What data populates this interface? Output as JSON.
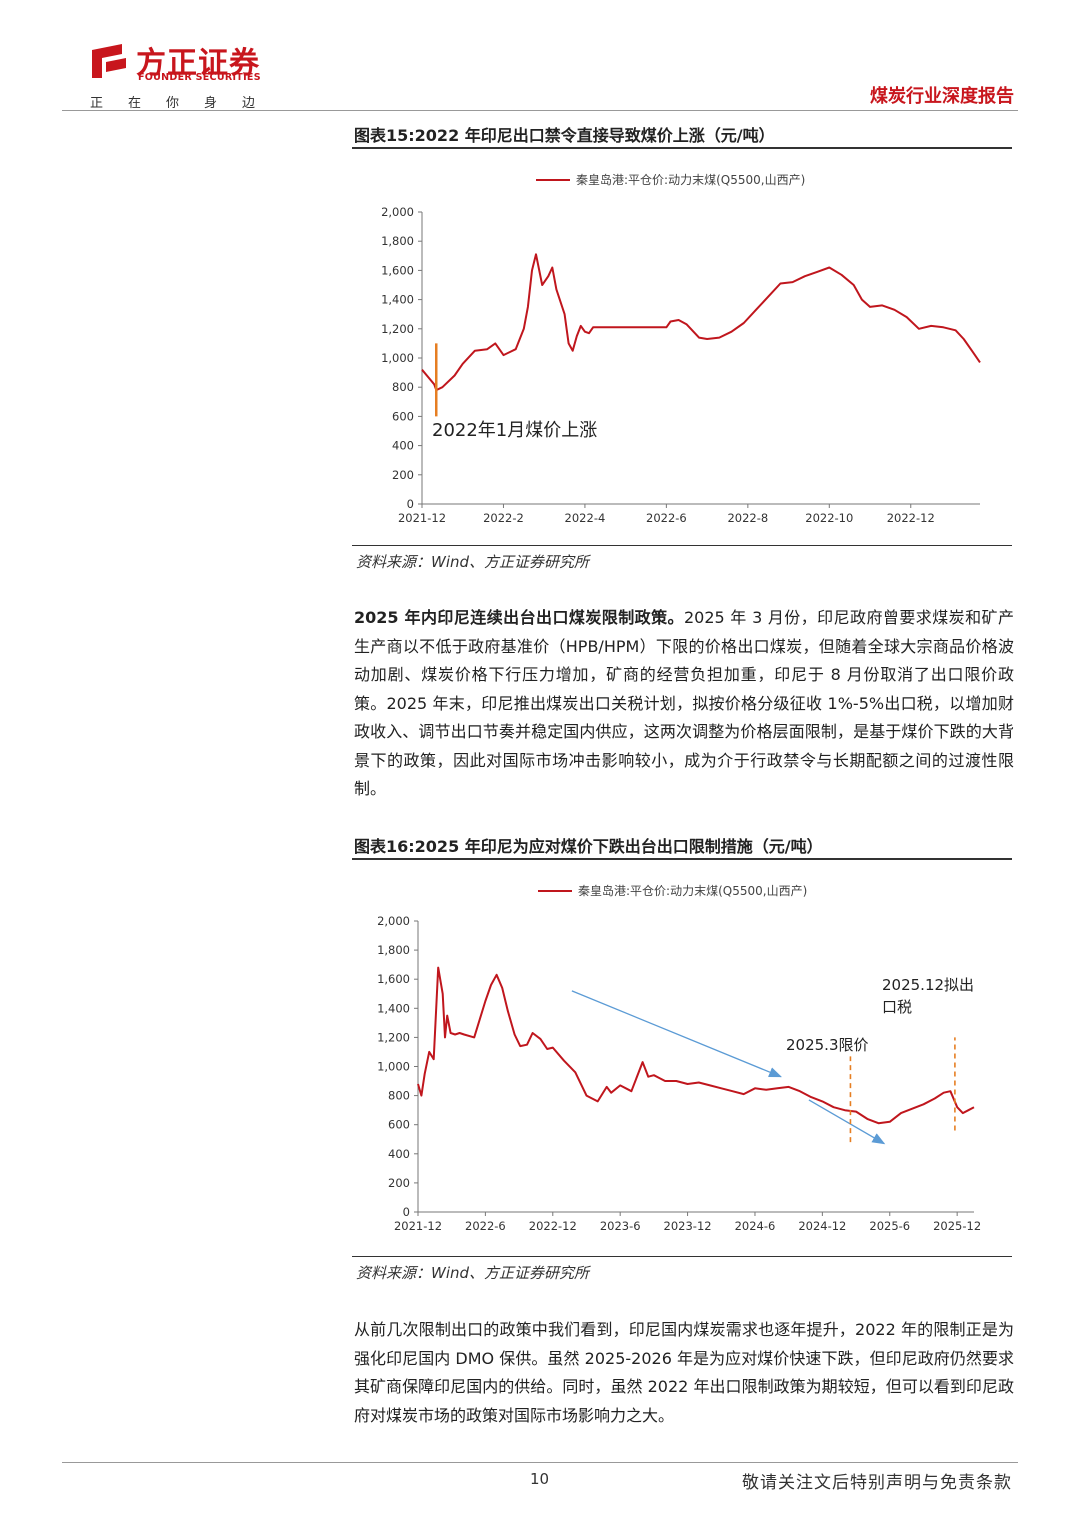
{
  "header": {
    "logo_cn": "方正证券",
    "logo_en": "FOUNDER SECURITIES",
    "slogan": [
      "正",
      "在",
      "你",
      "身",
      "边"
    ],
    "report_type": "煤炭行业深度报告",
    "brand_color": "#c8161d"
  },
  "figure15": {
    "title": "图表15:2022 年印尼出口禁令直接导致煤价上涨（元/吨）",
    "source": "资料来源：Wind、方正证券研究所"
  },
  "figure16": {
    "title": "图表16:2025 年印尼为应对煤价下跌出台出口限制措施（元/吨）",
    "source": "资料来源：Wind、方正证券研究所"
  },
  "paragraph1": {
    "bold_lead": "2025 年内印尼连续出台出口煤炭限制政策。",
    "text": "2025 年 3 月份，印尼政府曾要求煤炭和矿产生产商以不低于政府基准价（HPB/HPM）下限的价格出口煤炭，但随着全球大宗商品价格波动加剧、煤炭价格下行压力增加，矿商的经营负担加重，印尼于 8 月份取消了出口限价政策。2025 年末，印尼推出煤炭出口关税计划，拟按价格分级征收 1%-5%出口税，以增加财政收入、调节出口节奏并稳定国内供应，这两次调整为价格层面限制，是基于煤价下跌的大背景下的政策，因此对国际市场冲击影响较小，成为介于行政禁令与长期配额之间的过渡性限制。"
  },
  "paragraph2": {
    "text": "从前几次限制出口的政策中我们看到，印尼国内煤炭需求也逐年提升，2022 年的限制正是为强化印尼国内 DMO 保供。虽然 2025-2026 年是为应对煤价快速下跌，但印尼政府仍然要求其矿商保障印尼国内的供给。同时，虽然 2022 年出口限制政策为期较短，但可以看到印尼政府对煤炭市场的政策对国际市场影响力之大。"
  },
  "footer": {
    "page_number": "10",
    "disclaimer": "敬请关注文后特别声明与免责条款"
  },
  "chart_data": [
    {
      "type": "line",
      "legend": "秦皇岛港:平仓价:动力末煤(Q5500,山西产)",
      "ylim": [
        0,
        2000
      ],
      "yticks": [
        "0",
        "200",
        "400",
        "600",
        "800",
        "1,000",
        "1,200",
        "1,400",
        "1,600",
        "1,800",
        "2,000"
      ],
      "xticks": [
        "2021-12",
        "2022-2",
        "2022-4",
        "2022-6",
        "2022-8",
        "2022-10",
        "2022-12"
      ],
      "xlim_months": [
        0,
        13.7
      ],
      "line_color": "#c0161d",
      "annotation": {
        "text": "2022年1月煤价上涨",
        "x_month": 0.35,
        "y_from": 600,
        "y_to": 1100,
        "color": "#e67e22"
      },
      "x_months": [
        0,
        0.3,
        0.35,
        0.5,
        0.8,
        1.0,
        1.3,
        1.6,
        1.8,
        2.0,
        2.3,
        2.5,
        2.6,
        2.7,
        2.8,
        2.95,
        3.1,
        3.2,
        3.3,
        3.5,
        3.6,
        3.7,
        3.8,
        3.9,
        4.0,
        4.1,
        4.2,
        4.5,
        5.0,
        5.5,
        6.0,
        6.1,
        6.3,
        6.5,
        6.8,
        7.0,
        7.3,
        7.6,
        7.9,
        8.2,
        8.5,
        8.8,
        9.1,
        9.4,
        9.7,
        10.0,
        10.3,
        10.6,
        10.8,
        11.0,
        11.3,
        11.6,
        11.9,
        12.2,
        12.5,
        12.8,
        13.1,
        13.3,
        13.5,
        13.7
      ],
      "values": [
        920,
        820,
        780,
        800,
        880,
        960,
        1050,
        1060,
        1100,
        1020,
        1060,
        1200,
        1350,
        1600,
        1710,
        1500,
        1560,
        1620,
        1470,
        1300,
        1100,
        1050,
        1150,
        1220,
        1180,
        1170,
        1210,
        1210,
        1210,
        1210,
        1210,
        1250,
        1260,
        1230,
        1140,
        1130,
        1140,
        1180,
        1240,
        1330,
        1420,
        1510,
        1520,
        1560,
        1590,
        1620,
        1570,
        1500,
        1400,
        1350,
        1360,
        1330,
        1280,
        1200,
        1220,
        1210,
        1190,
        1130,
        1050,
        970
      ]
    },
    {
      "type": "line",
      "legend": "秦皇岛港:平仓价:动力末煤(Q5500,山西产)",
      "ylim": [
        0,
        2000
      ],
      "yticks": [
        "0",
        "200",
        "400",
        "600",
        "800",
        "1,000",
        "1,200",
        "1,400",
        "1,600",
        "1,800",
        "2,000"
      ],
      "xticks": [
        "2021-12",
        "2022-6",
        "2022-12",
        "2023-6",
        "2023-12",
        "2024-6",
        "2024-12",
        "2025-6",
        "2025-12"
      ],
      "xlim_months": [
        0,
        49.5
      ],
      "line_color": "#c0161d",
      "annotations": [
        {
          "text": "2025.3限价",
          "x_month": 38.5,
          "y_from": 480,
          "y_to": 1070
        },
        {
          "text": "2025.12拟出口税",
          "x_month": 47.8,
          "y_from": 560,
          "y_to": 1200
        }
      ],
      "arrows": [
        {
          "x1": 13.7,
          "y1": 1520,
          "x2": 32.3,
          "y2": 930
        },
        {
          "x1": 34.8,
          "y1": 770,
          "x2": 41.5,
          "y2": 470
        }
      ],
      "x_months": [
        0,
        0.3,
        0.6,
        1.0,
        1.4,
        1.8,
        2.2,
        2.4,
        2.6,
        2.9,
        3.3,
        3.7,
        4.1,
        5.0,
        6.0,
        6.5,
        7.0,
        7.5,
        8.0,
        8.6,
        9.1,
        9.7,
        10.2,
        10.9,
        11.5,
        12.0,
        13.0,
        14.0,
        15.0,
        16.0,
        16.8,
        17.2,
        18.0,
        19.0,
        20.0,
        20.5,
        21.0,
        21.5,
        22.0,
        23.0,
        24.0,
        25.0,
        26.0,
        27.0,
        28.0,
        29.0,
        30.0,
        31.0,
        32.0,
        33.0,
        34.0,
        35.0,
        36.0,
        37.0,
        38.0,
        39.0,
        40.0,
        41.0,
        42.0,
        43.0,
        44.0,
        45.0,
        46.0,
        46.8,
        47.4,
        48.0,
        48.5,
        49.0,
        49.5
      ],
      "values": [
        880,
        800,
        950,
        1100,
        1050,
        1680,
        1500,
        1200,
        1350,
        1230,
        1220,
        1230,
        1220,
        1200,
        1450,
        1560,
        1630,
        1540,
        1380,
        1220,
        1140,
        1150,
        1230,
        1190,
        1120,
        1130,
        1040,
        960,
        800,
        760,
        860,
        820,
        870,
        830,
        1030,
        930,
        940,
        920,
        900,
        900,
        880,
        890,
        870,
        850,
        830,
        810,
        850,
        840,
        850,
        860,
        830,
        790,
        760,
        720,
        700,
        690,
        640,
        610,
        620,
        680,
        710,
        740,
        780,
        820,
        830,
        720,
        680,
        700,
        720
      ]
    }
  ]
}
